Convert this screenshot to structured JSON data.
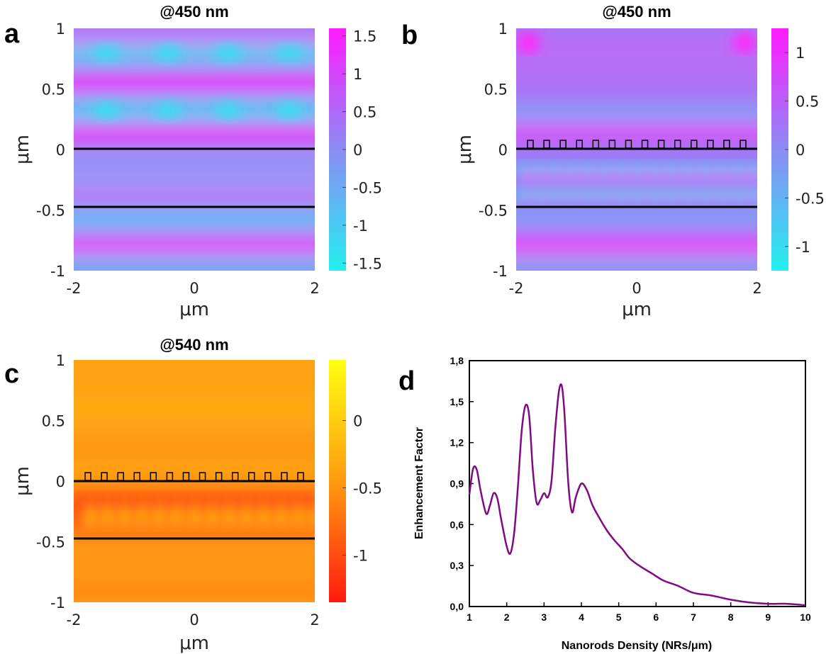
{
  "colors": {
    "cool_low": "#22f0f0",
    "cool_mid": "#8c8cf5",
    "cool_high": "#ff1aff",
    "warm_low": "#ff1a10",
    "warm_mid": "#ff9a10",
    "warm_high": "#ffff10",
    "curve": "#800a85",
    "line": "#000000"
  },
  "chart_data": [
    {
      "panel": "a",
      "type": "heatmap",
      "title": "@450 nm",
      "xlabel": "μm",
      "ylabel": "μm",
      "xlim": [
        -2,
        2
      ],
      "ylim": [
        -1,
        1
      ],
      "x_ticks": [
        "-2",
        "0",
        "2"
      ],
      "y_ticks": [
        "1",
        "0.5",
        "0",
        "-0.5",
        "-1"
      ],
      "colorbar": {
        "range": [
          -1.6,
          1.6
        ],
        "ticks": [
          "1.5",
          "1",
          "0.5",
          "0",
          "-0.5",
          "-1",
          "-1.5"
        ],
        "tick_values": [
          1.5,
          1,
          0.5,
          0,
          -0.5,
          -1,
          -1.5
        ],
        "colormap": "cool"
      },
      "interfaces_y": [
        0,
        -0.47
      ],
      "nanorods": false
    },
    {
      "panel": "b",
      "type": "heatmap",
      "title": "@450 nm",
      "xlabel": "μm",
      "ylabel": "μm",
      "xlim": [
        -2,
        2
      ],
      "ylim": [
        -1,
        1
      ],
      "x_ticks": [
        "-2",
        "0",
        "2"
      ],
      "y_ticks": [
        "1",
        "0.5",
        "0",
        "-0.5",
        "-1"
      ],
      "colorbar": {
        "range": [
          -1.25,
          1.25
        ],
        "ticks": [
          "1",
          "0.5",
          "0",
          "-0.5",
          "-1"
        ],
        "tick_values": [
          1,
          0.5,
          0,
          -0.5,
          -1
        ],
        "colormap": "cool"
      },
      "interfaces_y": [
        0,
        -0.47
      ],
      "nanorods": true
    },
    {
      "panel": "c",
      "type": "heatmap",
      "title": "@540 nm",
      "xlabel": "μm",
      "ylabel": "μm",
      "xlim": [
        -2,
        2
      ],
      "ylim": [
        -1,
        1
      ],
      "x_ticks": [
        "-2",
        "0",
        "2"
      ],
      "y_ticks": [
        "1",
        "0.5",
        "0",
        "-0.5",
        "-1"
      ],
      "colorbar": {
        "range": [
          -1.35,
          0.45
        ],
        "ticks": [
          "0",
          "-0.5",
          "-1"
        ],
        "tick_values": [
          0,
          -0.5,
          -1
        ],
        "colormap": "warm"
      },
      "interfaces_y": [
        0,
        -0.47
      ],
      "nanorods": true
    },
    {
      "panel": "d",
      "type": "line",
      "title": "",
      "xlabel": "Nanorods Density (NRs/μm)",
      "ylabel": "Enhancement Factor",
      "xlim": [
        1,
        10
      ],
      "ylim": [
        0,
        1.8
      ],
      "x_ticks": [
        "1",
        "2",
        "3",
        "4",
        "5",
        "6",
        "7",
        "8",
        "9",
        "10"
      ],
      "y_ticks": [
        "0,0",
        "0,3",
        "0,6",
        "0,9",
        "1,2",
        "1,5",
        "1,8"
      ],
      "series": [
        {
          "x": [
            1.0,
            1.1,
            1.2,
            1.3,
            1.45,
            1.55,
            1.65,
            1.75,
            1.85,
            2.0,
            2.1,
            2.2,
            2.3,
            2.4,
            2.5,
            2.6,
            2.7,
            2.8,
            2.9,
            3.0,
            3.1,
            3.2,
            3.3,
            3.4,
            3.48,
            3.55,
            3.65,
            3.75,
            3.85,
            4.0,
            4.15,
            4.3,
            4.5,
            4.7,
            4.9,
            5.1,
            5.3,
            5.6,
            5.9,
            6.2,
            6.6,
            7.0,
            7.5,
            8.0,
            8.5,
            9.0,
            9.5,
            10.0
          ],
          "y": [
            0.82,
            1.01,
            1.0,
            0.85,
            0.68,
            0.74,
            0.83,
            0.79,
            0.64,
            0.44,
            0.39,
            0.54,
            0.88,
            1.28,
            1.47,
            1.4,
            1.0,
            0.76,
            0.78,
            0.83,
            0.8,
            0.92,
            1.3,
            1.58,
            1.61,
            1.4,
            0.9,
            0.69,
            0.8,
            0.9,
            0.85,
            0.74,
            0.64,
            0.55,
            0.48,
            0.42,
            0.35,
            0.29,
            0.24,
            0.19,
            0.15,
            0.1,
            0.08,
            0.05,
            0.03,
            0.02,
            0.02,
            0.01
          ]
        }
      ]
    }
  ]
}
